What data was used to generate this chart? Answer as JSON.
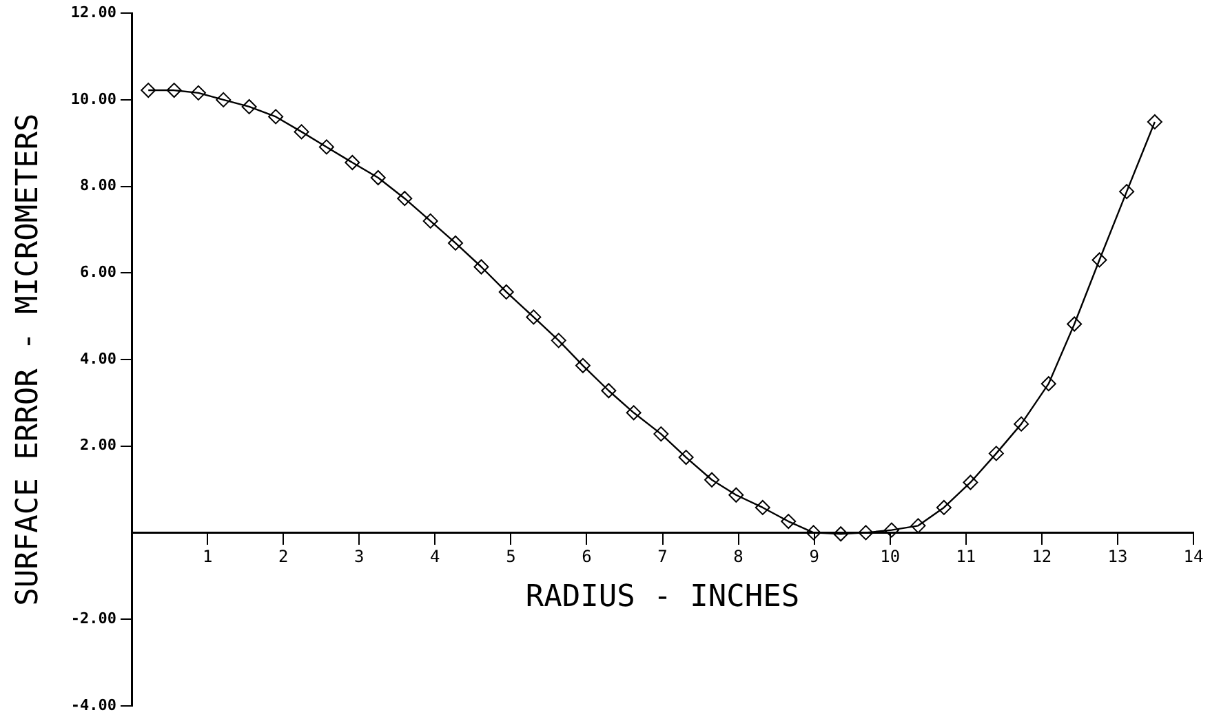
{
  "chart_data": {
    "type": "line",
    "xlabel": "RADIUS - INCHES",
    "ylabel": "SURFACE ERROR - MICROMETERS",
    "x": [
      0.22,
      0.56,
      0.88,
      1.21,
      1.55,
      1.9,
      2.24,
      2.57,
      2.91,
      3.25,
      3.6,
      3.94,
      4.27,
      4.61,
      4.94,
      5.3,
      5.63,
      5.95,
      6.29,
      6.62,
      6.98,
      7.31,
      7.65,
      7.97,
      8.32,
      8.66,
      8.99,
      9.35,
      9.68,
      10.02,
      10.37,
      10.71,
      11.06,
      11.4,
      11.73,
      12.09,
      12.43,
      12.76,
      13.12,
      13.49
    ],
    "series": [
      {
        "color": "#000000",
        "values": [
          10.22,
          10.22,
          10.16,
          10.0,
          9.84,
          9.61,
          9.26,
          8.91,
          8.55,
          8.2,
          7.72,
          7.2,
          6.69,
          6.14,
          5.56,
          4.98,
          4.44,
          3.86,
          3.28,
          2.77,
          2.28,
          1.74,
          1.22,
          0.87,
          0.58,
          0.26,
          0,
          -0.03,
          0,
          0.06,
          0.16,
          0.58,
          1.16,
          1.83,
          2.51,
          3.44,
          4.82,
          6.3,
          7.88,
          9.49
        ]
      }
    ],
    "xlim": [
      0,
      14
    ],
    "xticks": [
      1,
      2,
      3,
      4,
      5,
      6,
      7,
      8,
      9,
      10,
      11,
      12,
      13,
      14
    ],
    "ylim": [
      -4,
      12
    ],
    "yticks": [
      {
        "value": -4,
        "label": "-4.00"
      },
      {
        "value": -2,
        "label": "-2.00"
      },
      {
        "value": 2,
        "label": "2.00"
      },
      {
        "value": 4,
        "label": "4.00"
      },
      {
        "value": 6,
        "label": "6.00"
      },
      {
        "value": 8,
        "label": "8.00"
      },
      {
        "value": 10,
        "label": "10.00"
      },
      {
        "value": 12,
        "label": "12.00"
      }
    ],
    "marker": "diamond",
    "line_style": "solid",
    "grid": false,
    "legend": false
  }
}
